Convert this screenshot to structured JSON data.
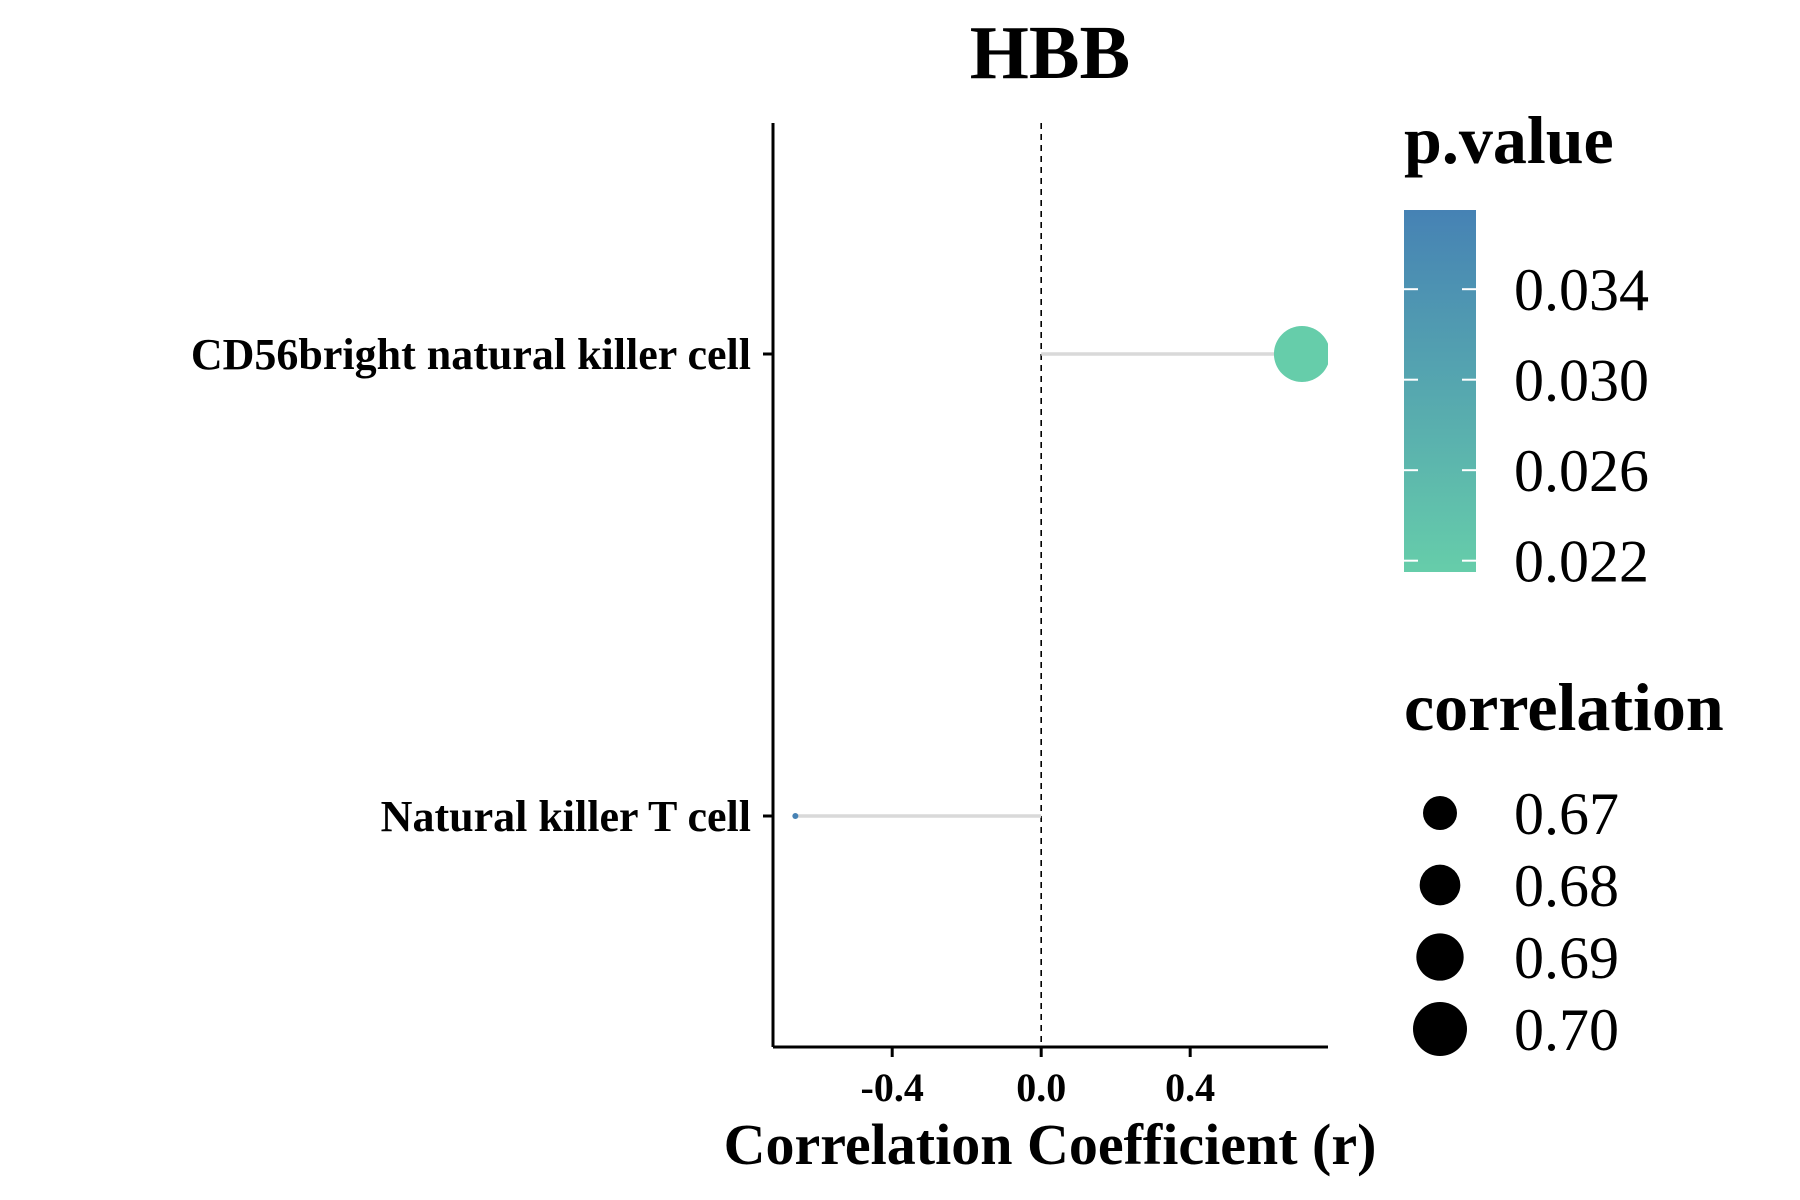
{
  "chart_data": {
    "type": "lollipop",
    "title": "HBB",
    "xlabel": "Correlation Coefficient (r)",
    "ylabel": "",
    "xlim": [
      -0.72,
      0.77
    ],
    "x_ticks": [
      "-0.4",
      "0.0",
      "0.4"
    ],
    "x_tick_values": [
      -0.4,
      0.0,
      0.4
    ],
    "reference_line_x": 0.0,
    "categories": [
      "CD56bright natural killer cell",
      "Natural killer T cell"
    ],
    "points": [
      {
        "category": "CD56bright natural killer cell",
        "correlation": 0.7,
        "p_value": 0.0215
      },
      {
        "category": "Natural killer T cell",
        "correlation": -0.66,
        "p_value": 0.0375
      }
    ],
    "color_legend": {
      "title": "p.value",
      "range": [
        0.0215,
        0.0375
      ],
      "color_low": "#66CDAA",
      "color_high": "#4682B4",
      "tick_labels": [
        "0.034",
        "0.030",
        "0.026",
        "0.022"
      ],
      "tick_values": [
        0.034,
        0.03,
        0.026,
        0.022
      ]
    },
    "size_legend": {
      "title": "correlation",
      "labels": [
        "0.67",
        "0.68",
        "0.69",
        "0.70"
      ],
      "values": [
        0.67,
        0.68,
        0.69,
        0.7
      ]
    },
    "segment_color": "#D9D9D9",
    "grid": false,
    "legend_position": "right"
  }
}
